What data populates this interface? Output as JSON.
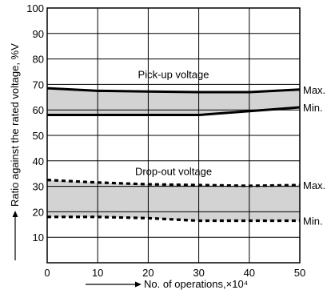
{
  "chart_data": {
    "type": "line",
    "xlabel": "No. of operations,×10⁴",
    "ylabel": "Ratio against the rated voltage, %V",
    "xlim": [
      0,
      50
    ],
    "ylim": [
      0,
      100
    ],
    "x_ticks": [
      "0",
      "10",
      "20",
      "30",
      "40",
      "50"
    ],
    "y_ticks": [
      "10",
      "20",
      "30",
      "40",
      "50",
      "60",
      "70",
      "80",
      "90",
      "100"
    ],
    "grid": true,
    "annotations": {
      "pickup": "Pick-up voltage",
      "dropout": "Drop-out voltage"
    },
    "band_fill_color": "#d3d3d3",
    "series": [
      {
        "group": "pickup",
        "name": "Max.",
        "style": "solid",
        "points": [
          [
            0,
            68.5
          ],
          [
            10,
            67.5
          ],
          [
            20,
            67.2
          ],
          [
            30,
            67
          ],
          [
            40,
            67
          ],
          [
            50,
            68
          ]
        ]
      },
      {
        "group": "pickup",
        "name": "Min.",
        "style": "solid",
        "points": [
          [
            0,
            58
          ],
          [
            10,
            58
          ],
          [
            20,
            58
          ],
          [
            30,
            58
          ],
          [
            40,
            59.5
          ],
          [
            50,
            61
          ]
        ]
      },
      {
        "group": "dropout",
        "name": "Max.",
        "style": "dashed",
        "points": [
          [
            0,
            32.5
          ],
          [
            10,
            31.5
          ],
          [
            20,
            30.8
          ],
          [
            30,
            30.5
          ],
          [
            40,
            30.2
          ],
          [
            50,
            30.5
          ]
        ]
      },
      {
        "group": "dropout",
        "name": "Min.",
        "style": "dashed",
        "points": [
          [
            0,
            18
          ],
          [
            10,
            18
          ],
          [
            20,
            17.5
          ],
          [
            30,
            16.5
          ],
          [
            40,
            16.5
          ],
          [
            50,
            16.5
          ]
        ]
      }
    ]
  }
}
